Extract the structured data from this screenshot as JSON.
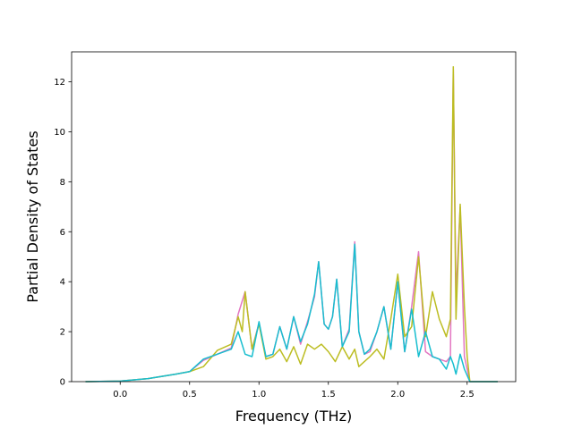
{
  "chart_data": {
    "type": "line",
    "title": "",
    "xlabel": "Frequency (THz)",
    "ylabel": "Partial Density of States",
    "xlim": [
      -0.35,
      2.85
    ],
    "ylim": [
      0,
      13.2
    ],
    "xticks": [
      0.0,
      0.5,
      1.0,
      1.5,
      2.0,
      2.5
    ],
    "xtick_labels": [
      "0.0",
      "0.5",
      "1.0",
      "1.5",
      "2.0",
      "2.5"
    ],
    "yticks": [
      0,
      2,
      4,
      6,
      8,
      10,
      12
    ],
    "ytick_labels": [
      "0",
      "2",
      "4",
      "6",
      "8",
      "10",
      "12"
    ],
    "grid": false,
    "legend": "none",
    "series": [
      {
        "color": "#e377c2",
        "x": [
          -0.25,
          0.0,
          0.2,
          0.4,
          0.5,
          0.6,
          0.7,
          0.8,
          0.85,
          0.9,
          0.95,
          1.0,
          1.05,
          1.1,
          1.15,
          1.2,
          1.25,
          1.3,
          1.35,
          1.4,
          1.43,
          1.47,
          1.5,
          1.53,
          1.56,
          1.6,
          1.65,
          1.69,
          1.72,
          1.76,
          1.8,
          1.85,
          1.9,
          1.95,
          2.0,
          2.05,
          2.1,
          2.15,
          2.2,
          2.25,
          2.3,
          2.35,
          2.38,
          2.4,
          2.42,
          2.45,
          2.48,
          2.52,
          2.72
        ],
        "y": [
          0.0,
          0.02,
          0.12,
          0.3,
          0.4,
          0.85,
          1.1,
          1.35,
          2.7,
          3.6,
          1.3,
          2.35,
          1.0,
          1.1,
          2.2,
          1.3,
          2.6,
          1.5,
          2.4,
          3.4,
          4.8,
          2.3,
          2.1,
          2.6,
          4.1,
          1.4,
          2.1,
          5.6,
          2.0,
          1.1,
          1.2,
          2.0,
          3.0,
          1.3,
          4.0,
          1.2,
          3.0,
          5.2,
          1.2,
          1.0,
          0.9,
          0.8,
          1.0,
          12.5,
          3.4,
          7.0,
          1.0,
          0.0,
          0.0
        ]
      },
      {
        "color": "#bcbd22",
        "x": [
          -0.25,
          0.0,
          0.2,
          0.4,
          0.5,
          0.6,
          0.7,
          0.8,
          0.85,
          0.88,
          0.9,
          0.95,
          1.0,
          1.05,
          1.1,
          1.15,
          1.2,
          1.25,
          1.3,
          1.35,
          1.4,
          1.45,
          1.5,
          1.55,
          1.6,
          1.65,
          1.69,
          1.72,
          1.76,
          1.8,
          1.85,
          1.9,
          1.95,
          2.0,
          2.05,
          2.1,
          2.15,
          2.2,
          2.25,
          2.3,
          2.35,
          2.38,
          2.4,
          2.42,
          2.45,
          2.48,
          2.5,
          2.52,
          2.72
        ],
        "y": [
          0.0,
          0.02,
          0.12,
          0.3,
          0.4,
          0.6,
          1.25,
          1.5,
          2.6,
          2.0,
          3.6,
          1.3,
          2.3,
          0.9,
          1.0,
          1.3,
          0.8,
          1.4,
          0.7,
          1.5,
          1.3,
          1.5,
          1.2,
          0.8,
          1.4,
          0.9,
          1.3,
          0.6,
          0.8,
          1.0,
          1.3,
          0.9,
          2.5,
          4.3,
          1.8,
          2.2,
          5.0,
          1.8,
          3.6,
          2.5,
          1.8,
          2.5,
          12.6,
          2.5,
          7.1,
          3.0,
          1.0,
          0.0,
          0.0
        ]
      },
      {
        "color": "#17becf",
        "x": [
          -0.25,
          0.0,
          0.2,
          0.4,
          0.5,
          0.6,
          0.7,
          0.8,
          0.85,
          0.9,
          0.95,
          1.0,
          1.05,
          1.1,
          1.15,
          1.2,
          1.25,
          1.3,
          1.35,
          1.4,
          1.43,
          1.47,
          1.5,
          1.53,
          1.56,
          1.6,
          1.65,
          1.69,
          1.72,
          1.76,
          1.8,
          1.85,
          1.9,
          1.95,
          2.0,
          2.05,
          2.1,
          2.15,
          2.2,
          2.25,
          2.3,
          2.35,
          2.38,
          2.4,
          2.42,
          2.45,
          2.48,
          2.52,
          2.72
        ],
        "y": [
          0.0,
          0.02,
          0.12,
          0.3,
          0.4,
          0.9,
          1.1,
          1.3,
          2.0,
          1.1,
          1.0,
          2.4,
          1.0,
          1.1,
          2.2,
          1.3,
          2.6,
          1.6,
          2.3,
          3.5,
          4.8,
          2.3,
          2.1,
          2.6,
          4.1,
          1.4,
          2.0,
          5.5,
          2.0,
          1.1,
          1.3,
          2.0,
          3.0,
          1.3,
          4.0,
          1.2,
          2.9,
          1.0,
          2.0,
          1.0,
          0.9,
          0.5,
          1.0,
          0.7,
          0.3,
          1.1,
          0.5,
          0.0,
          0.0
        ]
      }
    ]
  }
}
